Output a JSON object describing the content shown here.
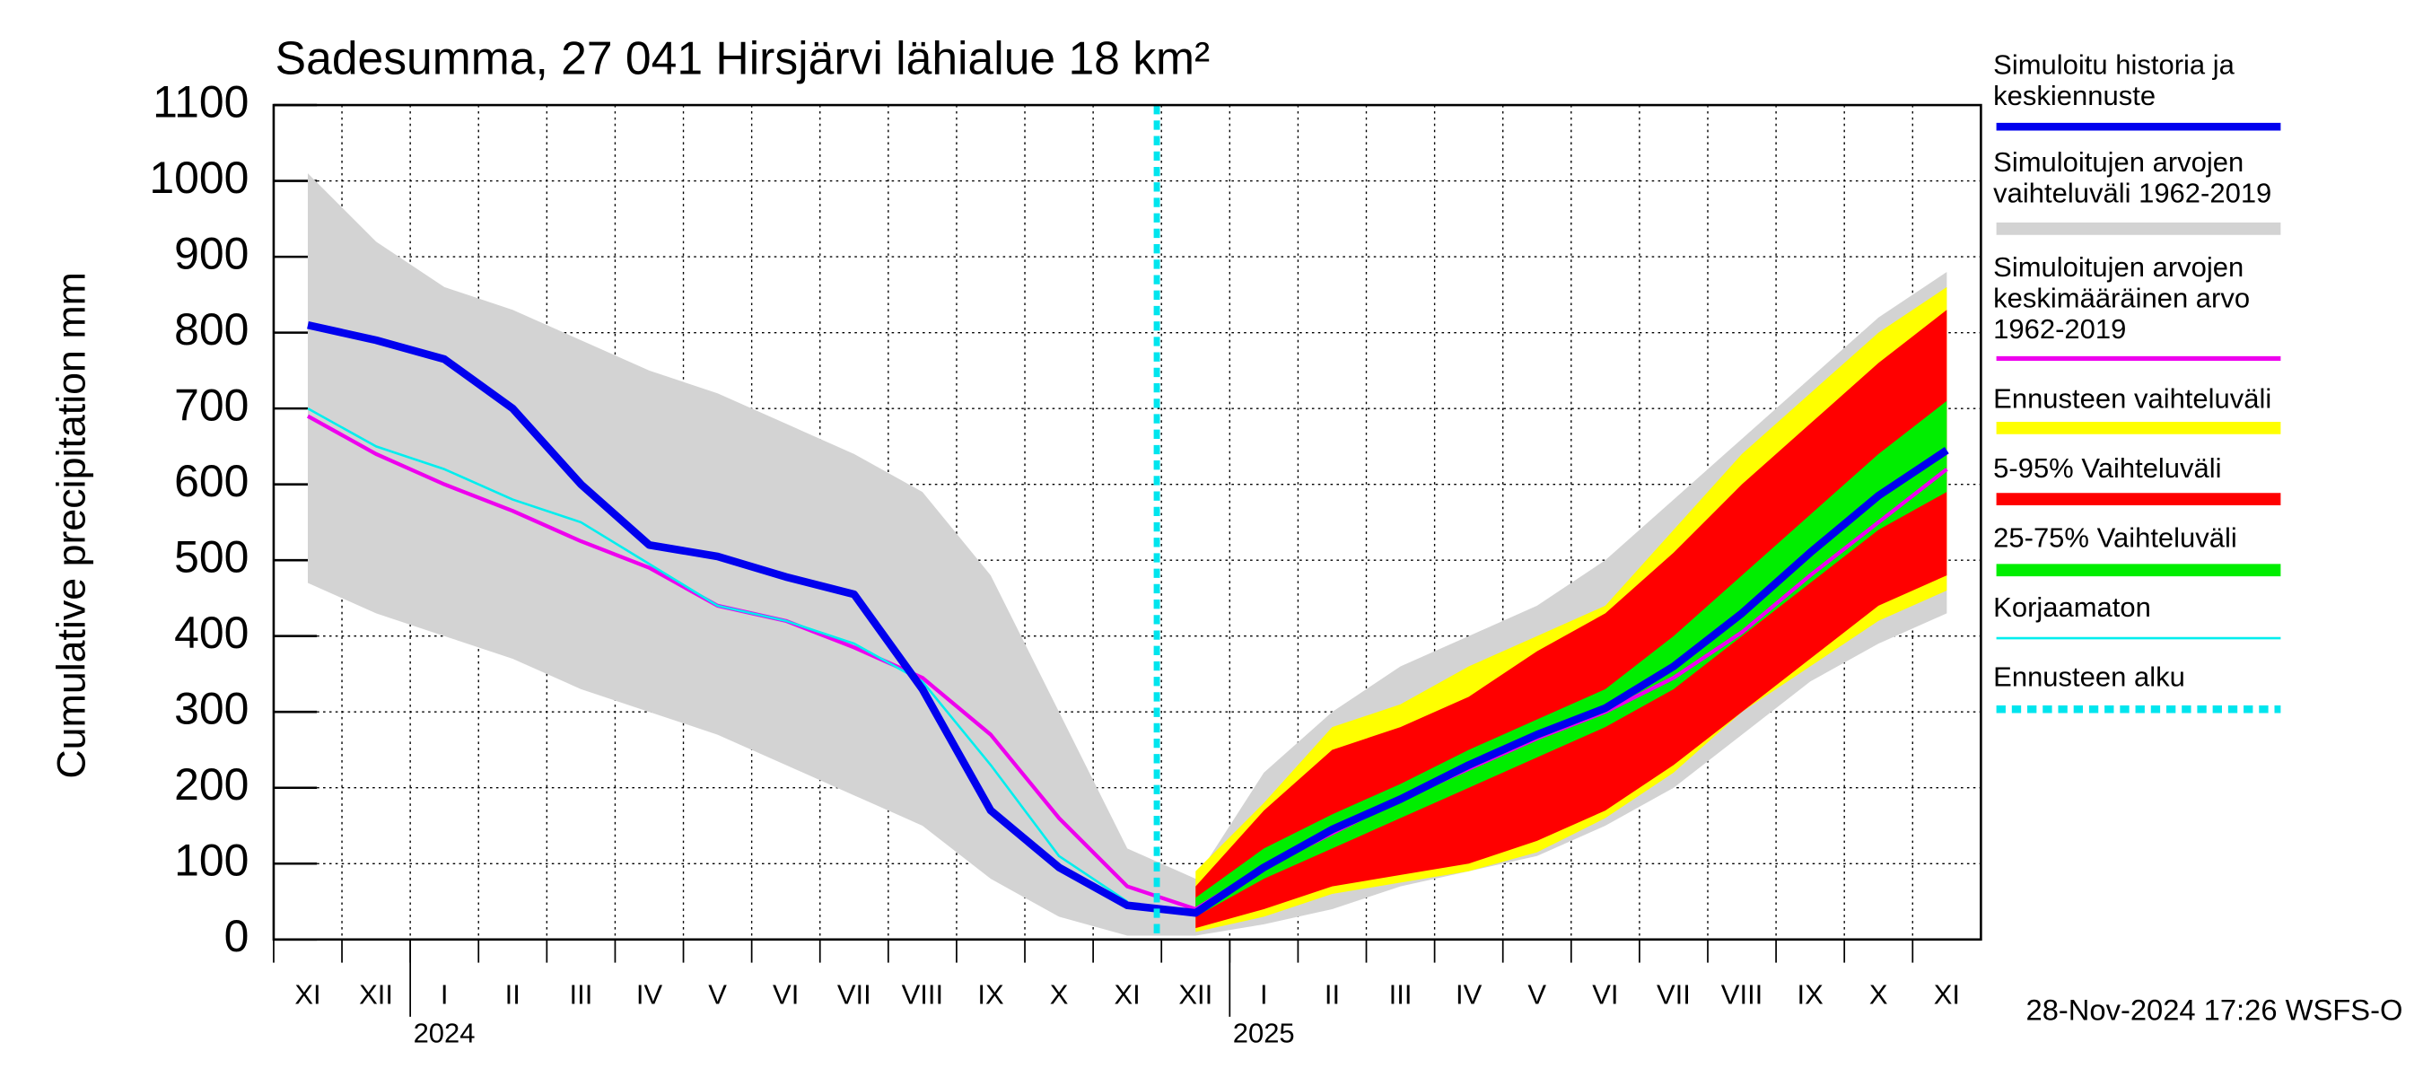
{
  "chart_data": {
    "type": "line",
    "title": "Sadesumma, 27 041 Hirsjärvi lähialue 18 km²",
    "y_label": "Cumulative precipitation   mm",
    "footer": "28-Nov-2024 17:26 WSFS-O",
    "categories": [
      "XI",
      "XII",
      "I",
      "II",
      "III",
      "IV",
      "V",
      "VI",
      "VII",
      "VIII",
      "IX",
      "X",
      "XI",
      "XII",
      "I",
      "II",
      "III",
      "IV",
      "V",
      "VI",
      "VII",
      "VIII",
      "IX",
      "X",
      "XI"
    ],
    "years": [
      "2024",
      "2025"
    ],
    "ylim": [
      0,
      1100
    ],
    "yticks": [
      0,
      100,
      200,
      300,
      400,
      500,
      600,
      700,
      800,
      900,
      1000,
      1100
    ],
    "grid": true,
    "bands": [
      {
        "name": "Simuloitujen arvojen vaihteluväli 1962-2019",
        "color": "#d3d3d3",
        "lower": [
          470,
          430,
          400,
          370,
          330,
          300,
          270,
          230,
          190,
          150,
          80,
          30,
          5,
          5,
          20,
          40,
          70,
          90,
          110,
          150,
          200,
          270,
          340,
          390,
          430
        ],
        "upper": [
          1010,
          920,
          860,
          830,
          790,
          750,
          720,
          680,
          640,
          590,
          480,
          300,
          120,
          80,
          220,
          300,
          360,
          400,
          440,
          500,
          580,
          660,
          740,
          820,
          880
        ]
      },
      {
        "name": "Ennusteen vaihteluväli",
        "color": "#ffff00",
        "lower": [
          null,
          null,
          null,
          null,
          null,
          null,
          null,
          null,
          null,
          null,
          null,
          null,
          null,
          10,
          30,
          60,
          75,
          90,
          115,
          160,
          220,
          300,
          360,
          420,
          460
        ],
        "upper": [
          null,
          null,
          null,
          null,
          null,
          null,
          null,
          null,
          null,
          null,
          null,
          null,
          null,
          90,
          180,
          280,
          310,
          360,
          400,
          440,
          540,
          640,
          720,
          800,
          860
        ]
      },
      {
        "name": "5-95% Vaihteluväli",
        "color": "#ff0000",
        "lower": [
          null,
          null,
          null,
          null,
          null,
          null,
          null,
          null,
          null,
          null,
          null,
          null,
          null,
          15,
          40,
          70,
          85,
          100,
          130,
          170,
          230,
          300,
          370,
          440,
          480
        ],
        "upper": [
          null,
          null,
          null,
          null,
          null,
          null,
          null,
          null,
          null,
          null,
          null,
          null,
          null,
          70,
          170,
          250,
          280,
          320,
          380,
          430,
          510,
          600,
          680,
          760,
          830
        ]
      },
      {
        "name": "25-75% Vaihteluväli",
        "color": "#00ee00",
        "lower": [
          null,
          null,
          null,
          null,
          null,
          null,
          null,
          null,
          null,
          null,
          null,
          null,
          null,
          30,
          80,
          120,
          160,
          200,
          240,
          280,
          330,
          400,
          470,
          540,
          590
        ],
        "upper": [
          null,
          null,
          null,
          null,
          null,
          null,
          null,
          null,
          null,
          null,
          null,
          null,
          null,
          55,
          120,
          165,
          205,
          250,
          290,
          330,
          400,
          480,
          560,
          640,
          710
        ]
      }
    ],
    "series": [
      {
        "name": "Simuloitujen arvojen keskimääräinen arvo 1962-2019",
        "color": "#ee00ee",
        "values": [
          690,
          640,
          600,
          565,
          525,
          490,
          440,
          420,
          385,
          345,
          270,
          160,
          70,
          40,
          95,
          140,
          185,
          225,
          265,
          300,
          345,
          405,
          480,
          550,
          620
        ]
      },
      {
        "name": "Korjaamaton",
        "color": "#00eeee",
        "values": [
          700,
          650,
          620,
          580,
          550,
          495,
          440,
          420,
          390,
          340,
          230,
          110,
          50,
          null,
          null,
          null,
          null,
          null,
          null,
          null,
          null,
          null,
          null,
          null,
          null
        ]
      },
      {
        "name": "Simuloitu historia ja keskiennuste",
        "color": "#0000ee",
        "values": [
          810,
          790,
          765,
          700,
          600,
          520,
          505,
          478,
          455,
          330,
          170,
          95,
          45,
          35,
          95,
          145,
          185,
          230,
          270,
          305,
          360,
          430,
          510,
          585,
          645
        ]
      }
    ],
    "forecast_start": {
      "name": "Ennusteen alku",
      "color": "#00e5ee"
    }
  }
}
